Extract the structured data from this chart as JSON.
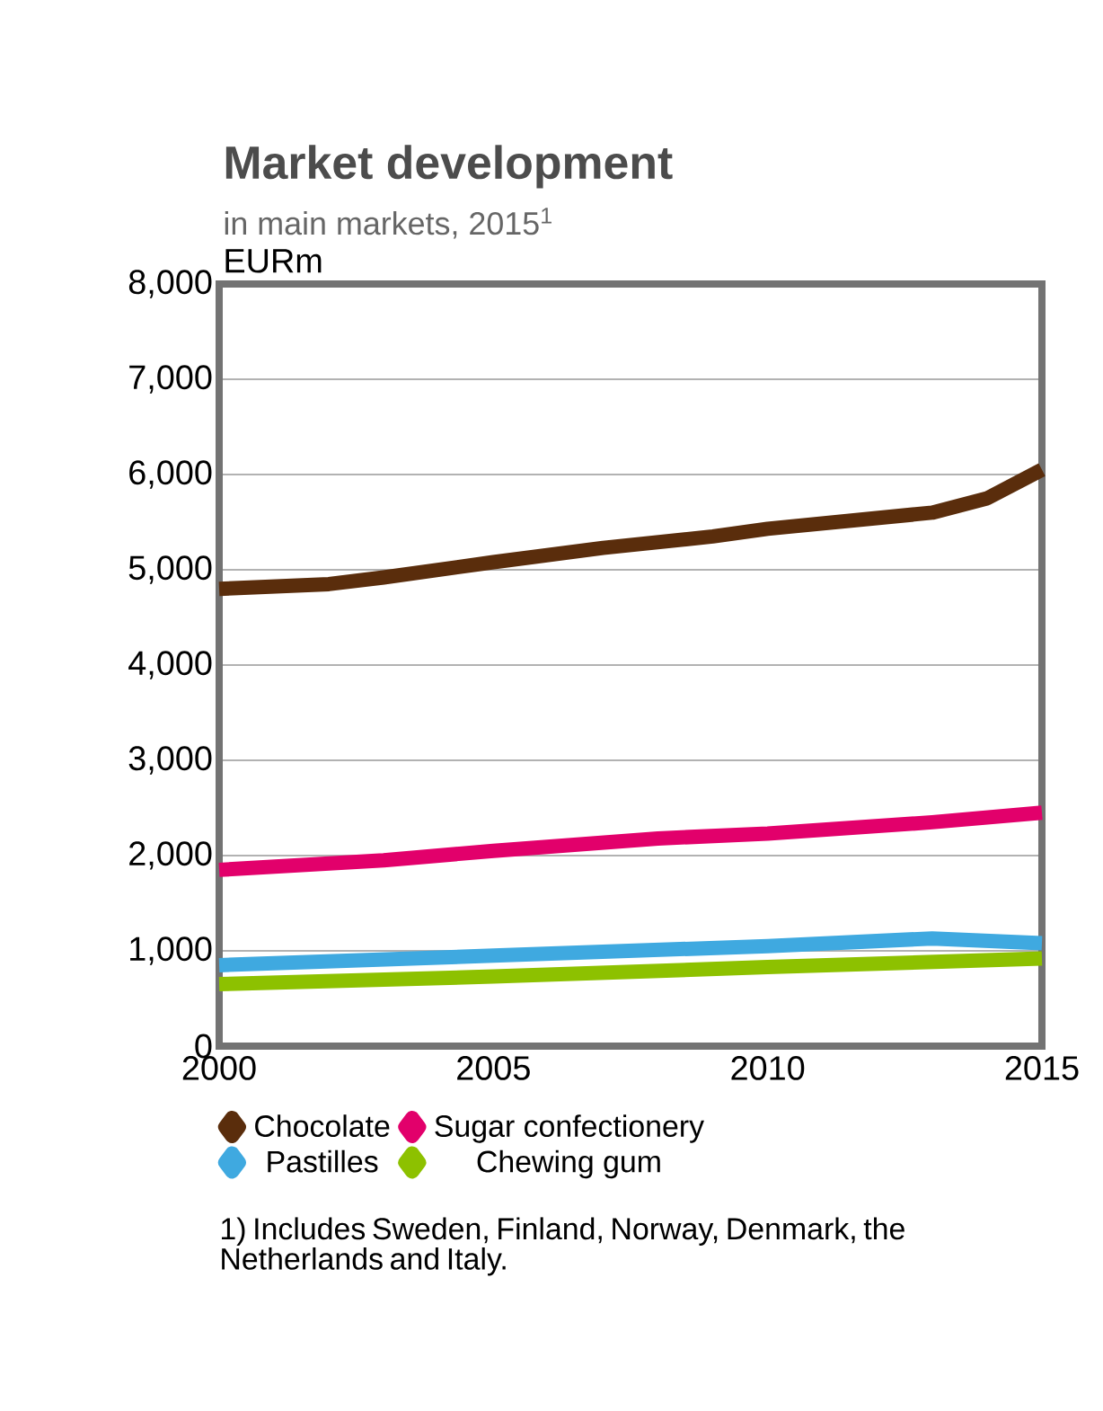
{
  "chart_data": {
    "type": "line",
    "title": "Market development",
    "subtitle": "in main markets, 2015$^{1}$",
    "ylabel": "EURm",
    "annotations": [
      "1) Includes Sweden, Finland, Norway, Denmark, the Netherlands and Italy."
    ],
    "xlim": [
      2000,
      2015
    ],
    "xticks": [
      2000,
      2005,
      2010,
      2015
    ],
    "ylim": [
      0,
      8000
    ],
    "yticks": [
      {
        "value": 0,
        "label": "0"
      },
      {
        "value": 1000,
        "label": "1,000"
      },
      {
        "value": 2000,
        "label": "2,000"
      },
      {
        "value": 3000,
        "label": "3,000"
      },
      {
        "value": 4000,
        "label": "4,000"
      },
      {
        "value": 5000,
        "label": "5,000"
      },
      {
        "value": 6000,
        "label": "6,000"
      },
      {
        "value": 7000,
        "label": "7,000"
      },
      {
        "value": 8000,
        "label": "8,000"
      }
    ],
    "grid": "y",
    "legend": "bottom",
    "marker": "none",
    "series": [
      {
        "name": "Chocolate",
        "color": "#5a2d0c",
        "x": [
          2000,
          2002,
          2003,
          2005,
          2007,
          2009,
          2010,
          2013,
          2014,
          2015
        ],
        "values": [
          4800,
          4850,
          4920,
          5080,
          5230,
          5350,
          5430,
          5600,
          5750,
          6050
        ]
      },
      {
        "name": "Sugar confectionery",
        "color": "#e2006b",
        "x": [
          2000,
          2003,
          2005,
          2008,
          2010,
          2013,
          2015
        ],
        "values": [
          1850,
          1950,
          2050,
          2180,
          2230,
          2350,
          2450
        ]
      },
      {
        "name": "Pastilles",
        "color": "#3fa9e0",
        "x": [
          2000,
          2005,
          2010,
          2013,
          2015
        ],
        "values": [
          850,
          950,
          1050,
          1130,
          1080
        ]
      },
      {
        "name": "Chewing gum",
        "color": "#8dc100",
        "x": [
          2000,
          2005,
          2010,
          2015
        ],
        "values": [
          650,
          730,
          830,
          920
        ]
      }
    ]
  }
}
